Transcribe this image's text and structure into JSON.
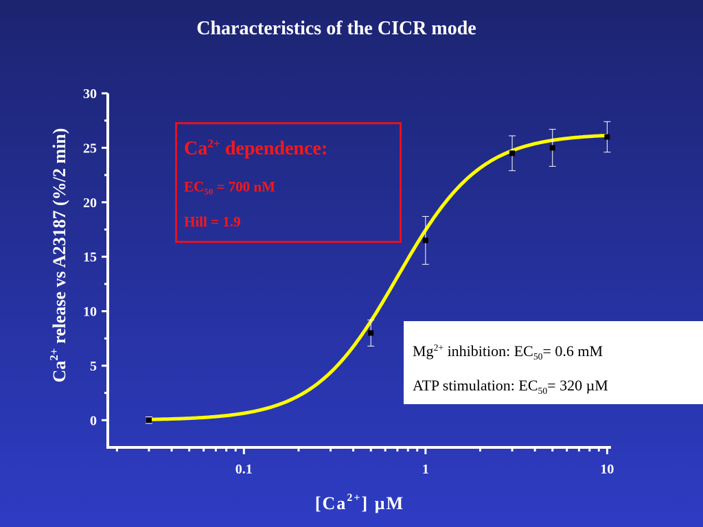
{
  "slide": {
    "title": "Characteristics of the CICR mode"
  },
  "chart_data": {
    "type": "scatter",
    "title": "",
    "xlabel": {
      "pre": "[Ca",
      "sup": "2+",
      "post": "] µM"
    },
    "ylabel": {
      "pre": "Ca",
      "sup": "2+",
      "post": " release vs A23187 (%/2 min)"
    },
    "x_scale": "log",
    "xlim": [
      0.0178,
      10.5
    ],
    "ylim": [
      -2.5,
      30
    ],
    "x_ticks": [
      {
        "value": 0.1,
        "label": "0.1"
      },
      {
        "value": 1,
        "label": "1"
      },
      {
        "value": 10,
        "label": "10"
      }
    ],
    "y_ticks": [
      {
        "value": 0,
        "label": "0"
      },
      {
        "value": 5,
        "label": "5"
      },
      {
        "value": 10,
        "label": "10"
      },
      {
        "value": 15,
        "label": "15"
      },
      {
        "value": 20,
        "label": "20"
      },
      {
        "value": 25,
        "label": "25"
      },
      {
        "value": 30,
        "label": "30"
      }
    ],
    "series": [
      {
        "x": [
          0.03,
          0.5,
          1,
          3,
          5,
          10
        ],
        "y": [
          0.0,
          8.0,
          16.5,
          24.5,
          25.0,
          26.0
        ],
        "error": [
          0.3,
          1.2,
          2.2,
          1.6,
          1.7,
          1.4
        ]
      }
    ],
    "fit": {
      "model": "hill",
      "ec50_uM": 0.7,
      "hill": 1.9,
      "max": 26.3
    },
    "colors": {
      "points": "#000000",
      "fit": "#ffff00",
      "axes": "#ffffff",
      "error_bars": "#ffffff"
    }
  },
  "callouts": {
    "dependence": {
      "title_pre": "Ca",
      "title_sup": "2+",
      "title_post": " dependence:",
      "ec50_pre": "EC",
      "ec50_sub": "50",
      "ec50_post": " = 700 nM",
      "hill": "Hill = 1.9",
      "color": "#ff1616"
    },
    "modulation": {
      "mg_pre": "Mg",
      "mg_sup": "2+",
      "mg_mid": " inhibition: EC",
      "mg_sub": "50",
      "mg_post": "= 0.6 mM",
      "atp_pre": "ATP stimulation: EC",
      "atp_sub": "50",
      "atp_post": "= 320 µM"
    }
  }
}
